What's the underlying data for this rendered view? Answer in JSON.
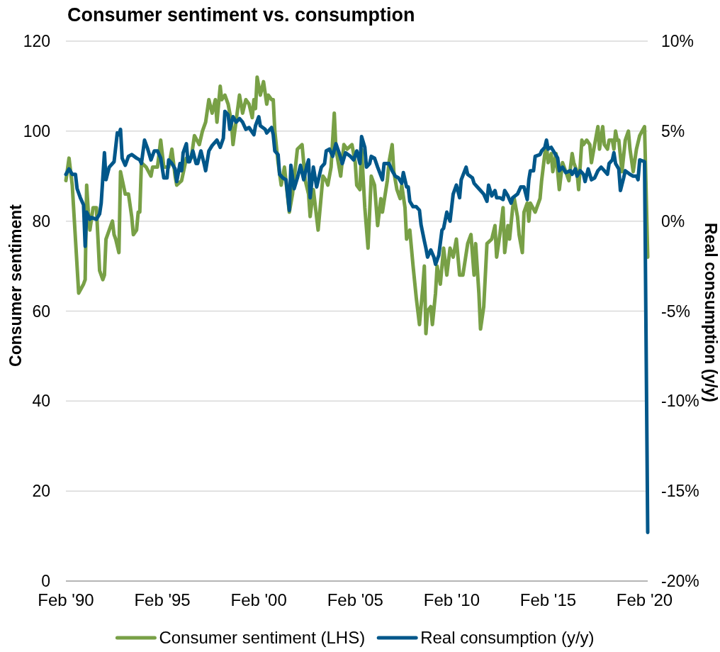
{
  "chart_data": {
    "type": "line",
    "title": "Consumer sentiment vs. consumption",
    "ylabel": "Consumer sentiment",
    "y2label": "Real consumption (y/y)",
    "xlim": [
      "1990-02",
      "2020-04"
    ],
    "xticks": [
      {
        "value": "1990-02",
        "label": "Feb '90"
      },
      {
        "value": "1995-02",
        "label": "Feb '95"
      },
      {
        "value": "2000-02",
        "label": "Feb '00"
      },
      {
        "value": "2005-02",
        "label": "Feb '05"
      },
      {
        "value": "2010-02",
        "label": "Feb '10"
      },
      {
        "value": "2015-02",
        "label": "Feb '15"
      },
      {
        "value": "2020-02",
        "label": "Feb '20"
      }
    ],
    "ylim": [
      0,
      120
    ],
    "yticks": [
      0,
      20,
      40,
      60,
      80,
      100,
      120
    ],
    "y2lim": [
      -20,
      10
    ],
    "y2ticks": [
      {
        "value": -20,
        "label": "-20%"
      },
      {
        "value": -15,
        "label": "-15%"
      },
      {
        "value": -10,
        "label": "-10%"
      },
      {
        "value": -5,
        "label": "-5%"
      },
      {
        "value": 0,
        "label": "0%"
      },
      {
        "value": 5,
        "label": "5%"
      },
      {
        "value": 10,
        "label": "10%"
      }
    ],
    "grid": "y",
    "legend": "bottom",
    "series": [
      {
        "name": "Consumer sentiment (LHS)",
        "color": "#78a046",
        "x": [
          "1990-02",
          "1990-04",
          "1990-06",
          "1990-08",
          "1990-10",
          "1991-01",
          "1991-02",
          "1991-03",
          "1991-04",
          "1991-05",
          "1991-07",
          "1991-09",
          "1991-11",
          "1992-01",
          "1992-02",
          "1992-03",
          "1992-07",
          "1992-08",
          "1992-09",
          "1992-11",
          "1992-12",
          "1993-03",
          "1993-05",
          "1993-07",
          "1993-08",
          "1993-10",
          "1993-11",
          "1993-12",
          "1994-01",
          "1994-04",
          "1994-07",
          "1994-08",
          "1994-11",
          "1995-01",
          "1995-03",
          "1995-06",
          "1995-08",
          "1995-10",
          "1995-11",
          "1996-02",
          "1996-05",
          "1996-08",
          "1996-10",
          "1997-01",
          "1997-03",
          "1997-05",
          "1997-07",
          "1997-09",
          "1997-11",
          "1997-12",
          "1998-02",
          "1998-03",
          "1998-05",
          "1998-07",
          "1998-09",
          "1998-10",
          "1999-02",
          "1999-04",
          "1999-06",
          "1999-08",
          "1999-10",
          "1999-11",
          "1999-12",
          "2000-01",
          "2000-03",
          "2000-05",
          "2000-07",
          "2000-08",
          "2000-10",
          "2000-11",
          "2000-12",
          "2001-02",
          "2001-04",
          "2001-06",
          "2001-09",
          "2001-11",
          "2002-02",
          "2002-05",
          "2002-07",
          "2002-09",
          "2002-10",
          "2002-12",
          "2003-03",
          "2003-06",
          "2003-08",
          "2003-09",
          "2003-11",
          "2004-01",
          "2004-02",
          "2004-05",
          "2004-07",
          "2004-09",
          "2004-12",
          "2005-02",
          "2005-03",
          "2005-05",
          "2005-06",
          "2005-08",
          "2005-10",
          "2005-12",
          "2006-02",
          "2006-04",
          "2006-06",
          "2006-07",
          "2006-10",
          "2006-11",
          "2007-01",
          "2007-02",
          "2007-04",
          "2007-06",
          "2007-07",
          "2007-09",
          "2007-10",
          "2007-12",
          "2008-02",
          "2008-04",
          "2008-06",
          "2008-08",
          "2008-09",
          "2008-10",
          "2008-11",
          "2009-01",
          "2009-02",
          "2009-04",
          "2009-05",
          "2009-07",
          "2009-09",
          "2009-11",
          "2010-01",
          "2010-03",
          "2010-05",
          "2010-07",
          "2010-09",
          "2010-12",
          "2011-02",
          "2011-04",
          "2011-05",
          "2011-07",
          "2011-08",
          "2011-10",
          "2011-12",
          "2012-03",
          "2012-05",
          "2012-06",
          "2012-08",
          "2012-10",
          "2012-11",
          "2013-01",
          "2013-02",
          "2013-04",
          "2013-05",
          "2013-07",
          "2013-08",
          "2013-10",
          "2013-11",
          "2014-01",
          "2014-02",
          "2014-03",
          "2014-06",
          "2014-07",
          "2014-09",
          "2014-10",
          "2014-12",
          "2015-01",
          "2015-02",
          "2015-04",
          "2015-05",
          "2015-07",
          "2015-09",
          "2015-11",
          "2016-01",
          "2016-03",
          "2016-05",
          "2016-06",
          "2016-08",
          "2016-09",
          "2016-11",
          "2016-12",
          "2017-02",
          "2017-04",
          "2017-05",
          "2017-07",
          "2017-09",
          "2017-10",
          "2017-12",
          "2018-01",
          "2018-03",
          "2018-04",
          "2018-06",
          "2018-07",
          "2018-08",
          "2018-09",
          "2018-10",
          "2018-12",
          "2019-02",
          "2019-04",
          "2019-05",
          "2019-07",
          "2019-09",
          "2019-11",
          "2020-02",
          "2020-04"
        ],
        "values": [
          89,
          94,
          88,
          76,
          64,
          66,
          67,
          88,
          82,
          78,
          83,
          83,
          69,
          67,
          68,
          76,
          80,
          77,
          76,
          73,
          91,
          86,
          86,
          81,
          77,
          78,
          82,
          82,
          93,
          92,
          90,
          92,
          92,
          98,
          92,
          92,
          96,
          90,
          88,
          89,
          94,
          94,
          99,
          97,
          100,
          102,
          107,
          104,
          107,
          102,
          110,
          107,
          108,
          106,
          102,
          97,
          108,
          104,
          107,
          106,
          103,
          107,
          105,
          112,
          108,
          111,
          106,
          108,
          107,
          107,
          100,
          93,
          88,
          92,
          82,
          86,
          96,
          97,
          89,
          86,
          81,
          87,
          78,
          90,
          89,
          88,
          92,
          104,
          96,
          90,
          97,
          96,
          97,
          93,
          88,
          87,
          96,
          83,
          74,
          90,
          88,
          79,
          85,
          82,
          89,
          93,
          97,
          91,
          87,
          85,
          88,
          83,
          76,
          78,
          70,
          63,
          57,
          65,
          70,
          55,
          60,
          61,
          57,
          64,
          70,
          66,
          74,
          68,
          74,
          72,
          76,
          68,
          68,
          75,
          77,
          68,
          75,
          64,
          56,
          61,
          75,
          76,
          79,
          72,
          77,
          83,
          73,
          79,
          76,
          83,
          85,
          81,
          77,
          73,
          82,
          84,
          80,
          84,
          82,
          83,
          85,
          89,
          95,
          97,
          93,
          95,
          91,
          95,
          87,
          93,
          91,
          89,
          95,
          93,
          91,
          87,
          98,
          97,
          98,
          97,
          93,
          97,
          101,
          96,
          101,
          97,
          96,
          98,
          98,
          96,
          100,
          98,
          98,
          91,
          98,
          100,
          96,
          91,
          96,
          99,
          101,
          72
        ]
      },
      {
        "name": "Real consumption (y/y)",
        "color": "#00578a",
        "axis": "y2",
        "x": [
          "1990-02",
          "1990-04",
          "1990-06",
          "1990-08",
          "1990-09",
          "1990-11",
          "1991-01",
          "1991-02",
          "1991-03",
          "1991-05",
          "1991-06",
          "1991-09",
          "1991-11",
          "1991-12",
          "1992-02",
          "1992-03",
          "1992-05",
          "1992-08",
          "1992-10",
          "1992-11",
          "1992-12",
          "1993-01",
          "1993-03",
          "1993-05",
          "1993-07",
          "1993-10",
          "1993-12",
          "1994-01",
          "1994-03",
          "1994-05",
          "1994-07",
          "1994-09",
          "1994-11",
          "1995-01",
          "1995-03",
          "1995-05",
          "1995-06",
          "1995-08",
          "1995-10",
          "1995-11",
          "1996-01",
          "1996-02",
          "1996-03",
          "1996-05",
          "1996-06",
          "1996-07",
          "1996-09",
          "1996-11",
          "1996-12",
          "1997-02",
          "1997-04",
          "1997-05",
          "1997-07",
          "1997-09",
          "1997-12",
          "1998-02",
          "1998-04",
          "1998-05",
          "1998-07",
          "1998-08",
          "1998-10",
          "1998-12",
          "1999-02",
          "1999-04",
          "1999-06",
          "1999-08",
          "1999-11",
          "1999-12",
          "2000-02",
          "2000-03",
          "2000-06",
          "2000-07",
          "2000-10",
          "2000-11",
          "2000-12",
          "2001-02",
          "2001-03",
          "2001-05",
          "2001-07",
          "2001-09",
          "2001-10",
          "2001-12",
          "2002-02",
          "2002-04",
          "2002-06",
          "2002-08",
          "2002-09",
          "2002-10",
          "2002-12",
          "2003-02",
          "2003-05",
          "2003-07",
          "2003-08",
          "2003-10",
          "2003-12",
          "2004-02",
          "2004-04",
          "2004-06",
          "2004-08",
          "2004-11",
          "2005-01",
          "2005-03",
          "2005-05",
          "2005-06",
          "2005-08",
          "2005-09",
          "2005-11",
          "2005-12",
          "2006-02",
          "2006-04",
          "2006-07",
          "2006-08",
          "2006-11",
          "2007-01",
          "2007-03",
          "2007-05",
          "2007-07",
          "2007-08",
          "2007-10",
          "2007-11",
          "2007-12",
          "2008-02",
          "2008-04",
          "2008-06",
          "2008-07",
          "2008-09",
          "2008-10",
          "2008-11",
          "2009-01",
          "2009-03",
          "2009-04",
          "2009-06",
          "2009-08",
          "2009-09",
          "2009-11",
          "2010-01",
          "2010-03",
          "2010-05",
          "2010-07",
          "2010-08",
          "2010-11",
          "2010-12",
          "2011-03",
          "2011-04",
          "2011-06",
          "2011-08",
          "2011-10",
          "2011-12",
          "2012-01",
          "2012-03",
          "2012-05",
          "2012-06",
          "2012-08",
          "2012-10",
          "2012-11",
          "2013-01",
          "2013-03",
          "2013-04",
          "2013-07",
          "2013-09",
          "2013-11",
          "2014-01",
          "2014-02",
          "2014-03",
          "2014-05",
          "2014-06",
          "2014-09",
          "2014-10",
          "2014-12",
          "2015-01",
          "2015-02",
          "2015-04",
          "2015-06",
          "2015-08",
          "2015-09",
          "2015-11",
          "2016-01",
          "2016-04",
          "2016-05",
          "2016-07",
          "2016-08",
          "2016-10",
          "2016-12",
          "2017-01",
          "2017-03",
          "2017-05",
          "2017-07",
          "2017-09",
          "2017-11",
          "2018-01",
          "2018-03",
          "2018-04",
          "2018-06",
          "2018-07",
          "2018-08",
          "2018-10",
          "2018-11",
          "2019-01",
          "2019-02",
          "2019-05",
          "2019-07",
          "2019-09",
          "2019-10",
          "2019-11",
          "2020-02",
          "2020-04"
        ],
        "values": [
          2.6,
          2.9,
          2.6,
          2.6,
          1.8,
          1.3,
          0.9,
          -1.4,
          0.5,
          0.1,
          0.2,
          0.1,
          0.4,
          1.0,
          3.8,
          2.3,
          3.0,
          3.3,
          4.9,
          4.8,
          5.1,
          3.5,
          3.1,
          3.6,
          3.7,
          3.5,
          3.4,
          3.2,
          4.5,
          4.0,
          3.4,
          3.9,
          3.9,
          3.5,
          2.4,
          2.4,
          3.4,
          3.2,
          2.9,
          2.2,
          3.2,
          2.8,
          3.8,
          4.3,
          3.3,
          3.3,
          3.9,
          3.2,
          3.2,
          3.9,
          3.2,
          2.8,
          3.9,
          4.2,
          4.5,
          4.1,
          4.6,
          6.1,
          5.9,
          5.1,
          5.8,
          5.5,
          5.7,
          5.5,
          5.1,
          5.2,
          4.8,
          5.3,
          5.8,
          5.3,
          5.1,
          4.9,
          5.2,
          4.8,
          3.9,
          3.7,
          2.6,
          2.4,
          2.3,
          0.6,
          3.1,
          1.8,
          2.4,
          3.1,
          2.3,
          3.1,
          3.4,
          1.3,
          3.0,
          1.9,
          3.0,
          3.2,
          3.9,
          4.0,
          3.6,
          4.3,
          3.8,
          3.2,
          3.8,
          3.6,
          3.4,
          3.9,
          3.2,
          4.7,
          4.1,
          3.0,
          3.2,
          3.6,
          3.5,
          3.0,
          2.3,
          3.2,
          3.2,
          2.8,
          2.5,
          2.4,
          2.1,
          2.7,
          1.9,
          1.9,
          1.1,
          0.8,
          0.8,
          0.6,
          -0.2,
          -1.1,
          -1.5,
          -2.0,
          -1.6,
          -2.0,
          -2.4,
          -1.9,
          -0.5,
          -0.4,
          0.5,
          0.0,
          1.5,
          2.0,
          1.3,
          2.3,
          3.0,
          2.6,
          2.4,
          2.1,
          1.9,
          1.7,
          1.5,
          1.1,
          2.0,
          1.4,
          1.7,
          1.3,
          1.3,
          1.2,
          1.7,
          1.4,
          1.0,
          1.3,
          1.5,
          1.9,
          1.9,
          1.2,
          2.3,
          2.8,
          2.8,
          3.6,
          3.7,
          3.9,
          4.1,
          4.5,
          4.0,
          4.1,
          3.8,
          3.5,
          2.8,
          3.0,
          2.7,
          2.8,
          2.6,
          2.9,
          2.5,
          2.8,
          2.6,
          2.2,
          2.9,
          2.3,
          2.4,
          2.8,
          3.0,
          2.8,
          2.6,
          3.2,
          3.4,
          3.8,
          3.2,
          2.9,
          1.7,
          2.4,
          2.8,
          2.6,
          2.5,
          2.5,
          2.3,
          3.4,
          3.3,
          -17.3
        ]
      }
    ]
  }
}
